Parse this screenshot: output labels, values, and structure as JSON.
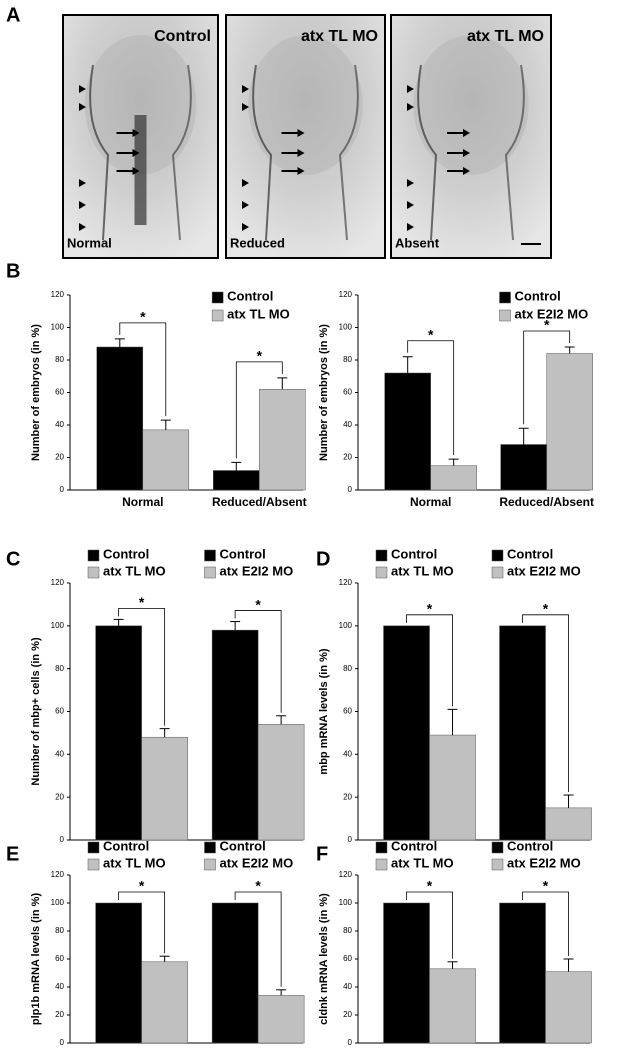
{
  "panel_a": {
    "letter": "A",
    "images": [
      {
        "title": "Control",
        "label": "Normal"
      },
      {
        "title": "atx TL MO",
        "label": "Reduced"
      },
      {
        "title": "atx TL MO",
        "label": "Absent"
      }
    ]
  },
  "chart_data": [
    {
      "type": "bar",
      "panel": "B",
      "ylabel": "Number of embryos (in %)",
      "categories": [
        "Normal",
        "Reduced/Absent"
      ],
      "series": [
        {
          "name": "Control",
          "color": "#000000",
          "values": [
            88,
            12
          ],
          "errors": [
            5,
            5
          ]
        },
        {
          "name": "atx TL MO",
          "color": "#c0c0c0",
          "values": [
            37,
            62
          ],
          "errors": [
            6,
            7
          ]
        }
      ],
      "annotations": [
        "*",
        "*"
      ],
      "ylim": [
        0,
        120
      ],
      "yticks": [
        0,
        20,
        40,
        60,
        80,
        100,
        120
      ]
    },
    {
      "type": "bar",
      "ylabel": "Number of embryos (in %)",
      "categories": [
        "Normal",
        "Reduced/Absent"
      ],
      "series": [
        {
          "name": "Control",
          "color": "#000000",
          "values": [
            72,
            28
          ],
          "errors": [
            10,
            10
          ]
        },
        {
          "name": "atx E2I2 MO",
          "color": "#c0c0c0",
          "values": [
            15,
            84
          ],
          "errors": [
            4,
            4
          ]
        }
      ],
      "annotations": [
        "*",
        "*"
      ],
      "ylim": [
        0,
        120
      ],
      "yticks": [
        0,
        20,
        40,
        60,
        80,
        100,
        120
      ]
    },
    {
      "type": "grouped_bar",
      "panel": "C",
      "ylabel": "Number of mbp+ cells (in %)",
      "colors": [
        "#000000",
        "#c0c0c0"
      ],
      "groups": [
        {
          "series": [
            {
              "name": "Control",
              "value": 100,
              "error": 3
            },
            {
              "name": "atx TL MO",
              "value": 48,
              "error": 4
            }
          ],
          "significance": "*"
        },
        {
          "series": [
            {
              "name": "Control",
              "value": 98,
              "error": 4
            },
            {
              "name": "atx E2I2 MO",
              "value": 54,
              "error": 4
            }
          ],
          "significance": "*"
        }
      ],
      "ylim": [
        0,
        120
      ],
      "yticks": [
        0,
        20,
        40,
        60,
        80,
        100,
        120
      ]
    },
    {
      "type": "grouped_bar",
      "panel": "D",
      "ylabel": "mbp mRNA levels (in %)",
      "colors": [
        "#000000",
        "#c0c0c0"
      ],
      "groups": [
        {
          "series": [
            {
              "name": "Control",
              "value": 100
            },
            {
              "name": "atx TL MO",
              "value": 49,
              "error": 12
            }
          ],
          "significance": "*"
        },
        {
          "series": [
            {
              "name": "Control",
              "value": 100
            },
            {
              "name": "atx E2I2 MO",
              "value": 15,
              "error": 6
            }
          ],
          "significance": "*"
        }
      ],
      "ylim": [
        0,
        120
      ],
      "yticks": [
        0,
        20,
        40,
        60,
        80,
        100,
        120
      ]
    },
    {
      "type": "grouped_bar",
      "panel": "E",
      "ylabel": "plp1b mRNA levels (in %)",
      "colors": [
        "#000000",
        "#c0c0c0"
      ],
      "groups": [
        {
          "series": [
            {
              "name": "Control",
              "value": 100
            },
            {
              "name": "atx TL MO",
              "value": 58,
              "error": 4
            }
          ],
          "significance": "*"
        },
        {
          "series": [
            {
              "name": "Control",
              "value": 100
            },
            {
              "name": "atx E2I2 MO",
              "value": 34,
              "error": 4
            }
          ],
          "significance": "*"
        }
      ],
      "ylim": [
        0,
        120
      ],
      "yticks": [
        0,
        20,
        40,
        60,
        80,
        100,
        120
      ]
    },
    {
      "type": "grouped_bar",
      "panel": "F",
      "ylabel": "cldnk mRNA levels (in %)",
      "colors": [
        "#000000",
        "#c0c0c0"
      ],
      "groups": [
        {
          "series": [
            {
              "name": "Control",
              "value": 100
            },
            {
              "name": "atx TL MO",
              "value": 53,
              "error": 5
            }
          ],
          "significance": "*"
        },
        {
          "series": [
            {
              "name": "Control",
              "value": 100
            },
            {
              "name": "atx E2I2 MO",
              "value": 51,
              "error": 9
            }
          ],
          "significance": "*"
        }
      ],
      "ylim": [
        0,
        120
      ],
      "yticks": [
        0,
        20,
        40,
        60,
        80,
        100,
        120
      ]
    }
  ]
}
